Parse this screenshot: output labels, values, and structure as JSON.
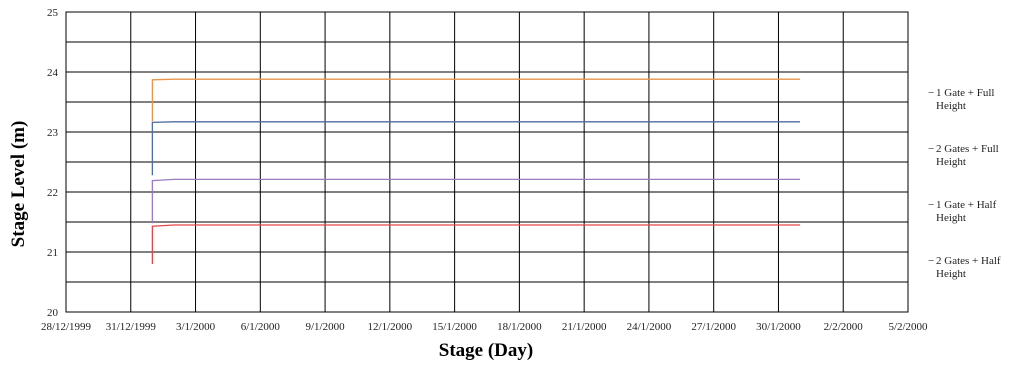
{
  "chart_data": {
    "type": "line",
    "xlabel": "Stage (Day)",
    "ylabel": "Stage Level (m)",
    "ylim": [
      20,
      25
    ],
    "y_ticks": [
      20,
      21,
      22,
      23,
      24,
      25
    ],
    "x_ticks": [
      "28/12/1999",
      "31/12/1999",
      "3/1/2000",
      "6/1/2000",
      "9/1/2000",
      "12/1/2000",
      "15/1/2000",
      "18/1/2000",
      "21/1/2000",
      "24/1/2000",
      "27/1/2000",
      "30/1/2000",
      "2/2/2000",
      "5/2/2000"
    ],
    "xlim": [
      "1999-12-28",
      "2000-02-05"
    ],
    "grid": true,
    "legend_position": "right",
    "series": [
      {
        "name": "1 Gate + Full Height",
        "color": "#4B6FA0",
        "points": [
          [
            "2000-01-01",
            22.28
          ],
          [
            "2000-01-01",
            23.16
          ],
          [
            "2000-01-02",
            23.17
          ],
          [
            "2000-01-31",
            23.17
          ]
        ]
      },
      {
        "name": "2 Gates + Full Height",
        "color": "#E8954A",
        "points": [
          [
            "2000-01-01",
            23.18
          ],
          [
            "2000-01-01",
            23.87
          ],
          [
            "2000-01-02",
            23.88
          ],
          [
            "2000-01-31",
            23.88
          ]
        ]
      },
      {
        "name": "1 Gate + Half Height",
        "color": "#E04848",
        "points": [
          [
            "2000-01-01",
            20.8
          ],
          [
            "2000-01-01",
            21.43
          ],
          [
            "2000-01-02",
            21.45
          ],
          [
            "2000-01-31",
            21.45
          ]
        ]
      },
      {
        "name": "2 Gates + Half Height",
        "color": "#9B7BC4",
        "points": [
          [
            "2000-01-01",
            21.48
          ],
          [
            "2000-01-01",
            22.19
          ],
          [
            "2000-01-02",
            22.21
          ],
          [
            "2000-01-31",
            22.21
          ]
        ]
      }
    ],
    "legend": [
      {
        "series": 0,
        "label_lines": [
          "1 Gate + Full",
          "Height"
        ]
      },
      {
        "series": 1,
        "label_lines": [
          "2 Gates + Full",
          "Height"
        ]
      },
      {
        "series": 2,
        "label_lines": [
          "1 Gate + Half",
          "Height"
        ]
      },
      {
        "series": 3,
        "label_lines": [
          "2 Gates + Half",
          "Height"
        ]
      }
    ],
    "legend_marker": "−"
  }
}
